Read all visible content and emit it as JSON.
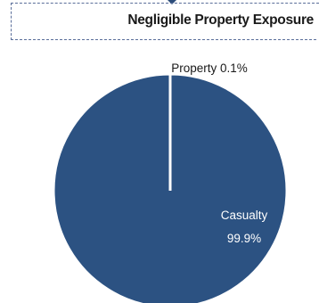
{
  "title": "Negligible Property Exposure",
  "colors": {
    "casualty": "#2c5282",
    "property": "#ffffff",
    "border": "#5a6e9a"
  },
  "chart_data": {
    "type": "pie",
    "title": "Negligible Property Exposure",
    "slices": [
      {
        "label": "Property",
        "value": 0.1,
        "value_text": "0.1%",
        "color": "#ffffff"
      },
      {
        "label": "Casualty",
        "value": 99.9,
        "value_text": "99.9%",
        "color": "#2c5282"
      }
    ],
    "labels": {
      "property": "Property 0.1%",
      "casualty_name": "Casualty",
      "casualty_value": "99.9%"
    }
  }
}
